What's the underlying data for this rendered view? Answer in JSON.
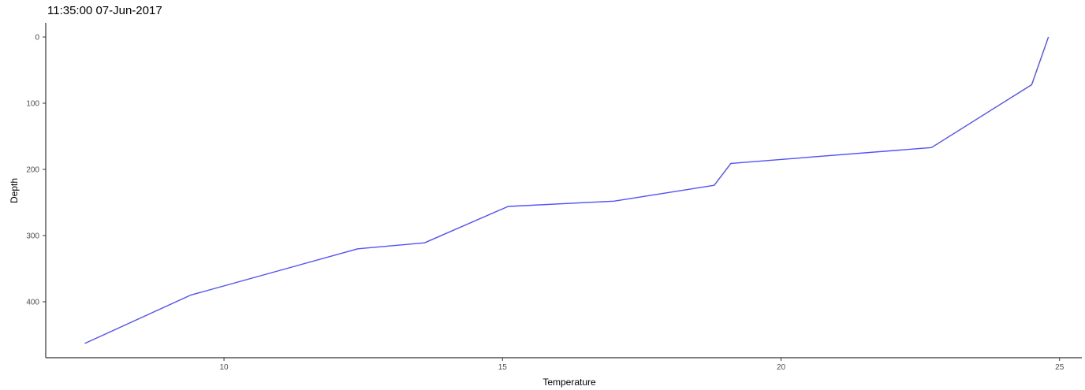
{
  "chart_data": {
    "type": "line",
    "title": "11:35:00 07-Jun-2017",
    "xlabel": "Temperature",
    "ylabel": "Depth",
    "xlim": [
      6.8,
      25.4
    ],
    "ylim": [
      0,
      478
    ],
    "y_reversed": true,
    "grid": false,
    "x_ticks": [
      10,
      15,
      20,
      25
    ],
    "y_ticks": [
      0,
      100,
      200,
      300,
      400
    ],
    "series": [
      {
        "color": "#5050ff",
        "points": [
          {
            "x": 7.5,
            "y": 463
          },
          {
            "x": 9.4,
            "y": 390
          },
          {
            "x": 12.4,
            "y": 320
          },
          {
            "x": 13.6,
            "y": 311
          },
          {
            "x": 15.1,
            "y": 256
          },
          {
            "x": 17.0,
            "y": 248
          },
          {
            "x": 18.8,
            "y": 224
          },
          {
            "x": 19.1,
            "y": 191
          },
          {
            "x": 22.7,
            "y": 167
          },
          {
            "x": 24.5,
            "y": 72
          },
          {
            "x": 24.8,
            "y": 0
          }
        ]
      }
    ]
  }
}
